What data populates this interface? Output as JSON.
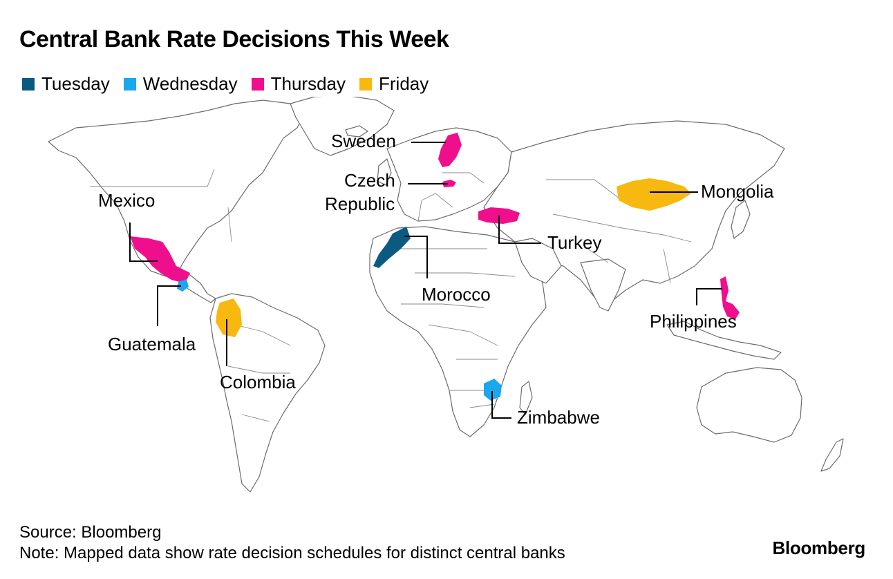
{
  "title": "Central Bank Rate Decisions This Week",
  "legend": [
    {
      "label": "Tuesday",
      "color": "#0b5a82"
    },
    {
      "label": "Wednesday",
      "color": "#1aa7ec"
    },
    {
      "label": "Thursday",
      "color": "#ef0e8c"
    },
    {
      "label": "Friday",
      "color": "#f7b90f"
    }
  ],
  "countries": [
    {
      "name": "Sweden",
      "day": "Thursday"
    },
    {
      "name": "Czech Republic",
      "day": "Thursday",
      "label_lines": [
        "Czech",
        "Republic"
      ]
    },
    {
      "name": "Mongolia",
      "day": "Friday"
    },
    {
      "name": "Mexico",
      "day": "Thursday"
    },
    {
      "name": "Turkey",
      "day": "Thursday"
    },
    {
      "name": "Morocco",
      "day": "Tuesday"
    },
    {
      "name": "Philippines",
      "day": "Thursday"
    },
    {
      "name": "Guatemala",
      "day": "Wednesday"
    },
    {
      "name": "Colombia",
      "day": "Friday"
    },
    {
      "name": "Zimbabwe",
      "day": "Wednesday"
    }
  ],
  "source": "Source: Bloomberg",
  "note": "Note: Mapped data show rate decision schedules for distinct central banks",
  "brand": "Bloomberg"
}
